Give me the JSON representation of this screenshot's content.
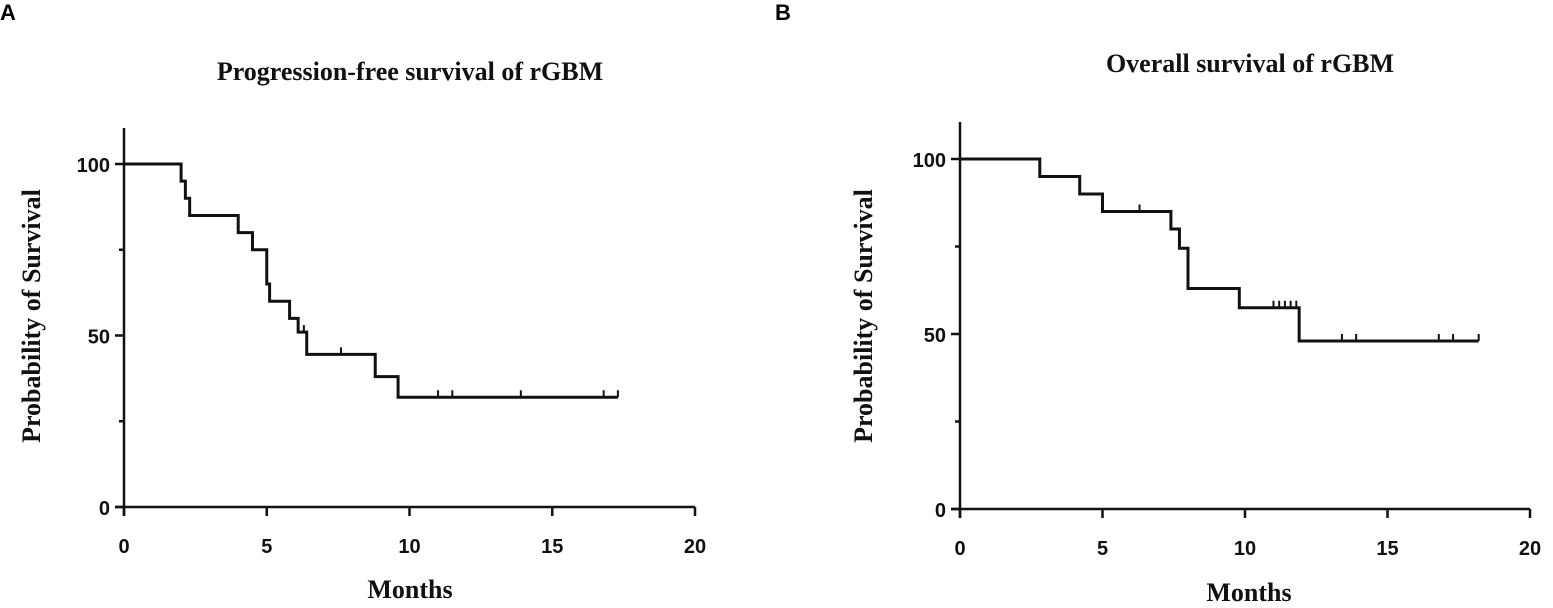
{
  "chart_data": [
    {
      "panel": "A",
      "type": "line",
      "title": "Progression-free survival of rGBM",
      "xlabel": "Months",
      "ylabel": "Probability of Survival",
      "xlim": [
        0,
        20
      ],
      "ylim": [
        0,
        110
      ],
      "xticks": [
        0,
        5,
        10,
        15,
        20
      ],
      "yticks_major": [
        0,
        50,
        100
      ],
      "yticks_minor": [
        25,
        75
      ],
      "grid": false,
      "series": [
        {
          "steps": [
            [
              0,
              100
            ],
            [
              2.0,
              95
            ],
            [
              2.15,
              90
            ],
            [
              2.3,
              85
            ],
            [
              4.0,
              80
            ],
            [
              4.5,
              75
            ],
            [
              5.0,
              65
            ],
            [
              5.1,
              60
            ],
            [
              5.8,
              55
            ],
            [
              6.1,
              51
            ],
            [
              6.4,
              44.5
            ],
            [
              8.8,
              38
            ],
            [
              9.6,
              32
            ],
            [
              17.3,
              32
            ]
          ],
          "censored": [
            [
              6.3,
              51
            ],
            [
              7.6,
              44.5
            ],
            [
              11.0,
              32
            ],
            [
              11.5,
              32
            ],
            [
              13.9,
              32
            ],
            [
              16.8,
              32
            ],
            [
              17.3,
              32
            ]
          ]
        }
      ]
    },
    {
      "panel": "B",
      "type": "line",
      "title": "Overall survival of rGBM",
      "xlabel": "Months",
      "ylabel": "Probability of Survival",
      "xlim": [
        0,
        20
      ],
      "ylim": [
        0,
        110
      ],
      "xticks": [
        0,
        5,
        10,
        15,
        20
      ],
      "yticks_major": [
        0,
        50,
        100
      ],
      "yticks_minor": [
        25,
        75
      ],
      "grid": false,
      "series": [
        {
          "steps": [
            [
              0,
              100
            ],
            [
              2.8,
              95
            ],
            [
              4.2,
              90
            ],
            [
              5.0,
              85
            ],
            [
              7.4,
              80
            ],
            [
              7.7,
              74.5
            ],
            [
              8.0,
              63
            ],
            [
              9.8,
              57.5
            ],
            [
              11.9,
              48
            ],
            [
              18.2,
              48
            ]
          ],
          "censored": [
            [
              6.3,
              85
            ],
            [
              11.0,
              57.5
            ],
            [
              11.2,
              57.5
            ],
            [
              11.4,
              57.5
            ],
            [
              11.6,
              57.5
            ],
            [
              11.8,
              57.5
            ],
            [
              13.4,
              48
            ],
            [
              13.9,
              48
            ],
            [
              16.8,
              48
            ],
            [
              17.3,
              48
            ],
            [
              18.2,
              48
            ]
          ]
        }
      ]
    }
  ]
}
